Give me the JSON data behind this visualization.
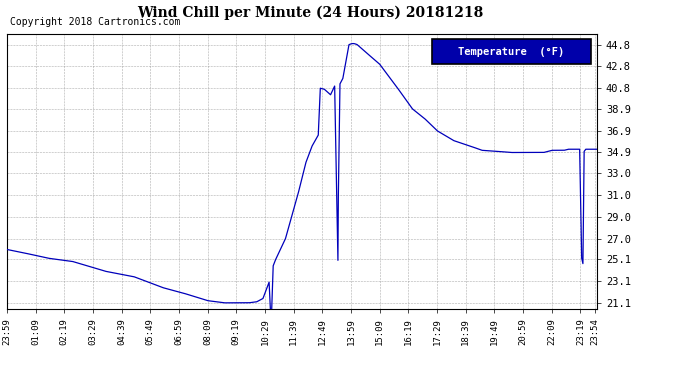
{
  "title": "Wind Chill per Minute (24 Hours) 20181218",
  "copyright": "Copyright 2018 Cartronics.com",
  "legend_label": "Temperature  (°F)",
  "line_color": "#0000bb",
  "background_color": "#ffffff",
  "plot_bg_color": "#ffffff",
  "yticks": [
    21.1,
    23.1,
    25.1,
    27.0,
    29.0,
    31.0,
    33.0,
    34.9,
    36.9,
    38.9,
    40.8,
    42.8,
    44.8
  ],
  "ylim": [
    20.5,
    45.8
  ],
  "xtick_labels": [
    "23:59",
    "01:09",
    "02:19",
    "03:29",
    "04:39",
    "05:49",
    "06:59",
    "08:09",
    "09:19",
    "10:29",
    "11:39",
    "12:49",
    "13:59",
    "15:09",
    "16:19",
    "17:29",
    "18:39",
    "19:49",
    "20:59",
    "22:09",
    "23:19",
    "23:54"
  ],
  "xtick_positions": [
    0,
    70,
    140,
    210,
    280,
    350,
    420,
    490,
    560,
    630,
    700,
    770,
    840,
    910,
    980,
    1050,
    1120,
    1190,
    1260,
    1330,
    1400,
    1435
  ],
  "xlim": [
    0,
    1440
  ]
}
